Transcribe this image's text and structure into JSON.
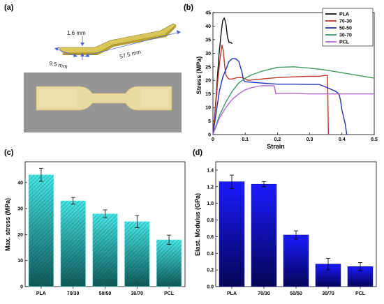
{
  "panels": {
    "a": "(a)",
    "b": "(b)",
    "c": "(c)",
    "d": "(d)"
  },
  "panel_a": {
    "dims": {
      "thickness": "1.6 mm",
      "width": "9.5 mm",
      "length": "57.5 mm"
    },
    "colors": {
      "specimen_model": "#d9c650",
      "photo_bg": "#8f8f8f",
      "photo_specimen": "#e8dba2",
      "arrow": "#4a63d6"
    }
  },
  "chart_data": [
    {
      "type": "line",
      "xlabel": "Strain",
      "ylabel": "Stress (MPa)",
      "xlim": [
        0,
        0.5
      ],
      "ylim": [
        0,
        45
      ],
      "xticks": [
        "0",
        "0.1",
        "0.2",
        "0.3",
        "0.4",
        "0.5"
      ],
      "yticks": [
        "0",
        "5",
        "10",
        "15",
        "20",
        "25",
        "30",
        "35",
        "40",
        "45"
      ],
      "legend_position": "top-right",
      "series": [
        {
          "name": "PLA",
          "color": "#111111",
          "points": [
            [
              0,
              0
            ],
            [
              0.005,
              6
            ],
            [
              0.01,
              14
            ],
            [
              0.015,
              23
            ],
            [
              0.02,
              31
            ],
            [
              0.025,
              37
            ],
            [
              0.03,
              42
            ],
            [
              0.035,
              43
            ],
            [
              0.04,
              41
            ],
            [
              0.045,
              36
            ],
            [
              0.05,
              34
            ],
            [
              0.055,
              34
            ],
            [
              0.06,
              33.5
            ]
          ]
        },
        {
          "name": "70-30",
          "color": "#c0392b",
          "points": [
            [
              0,
              0
            ],
            [
              0.008,
              10
            ],
            [
              0.015,
              20
            ],
            [
              0.022,
              28
            ],
            [
              0.028,
              33
            ],
            [
              0.032,
              31
            ],
            [
              0.036,
              26
            ],
            [
              0.04,
              22
            ],
            [
              0.045,
              21
            ],
            [
              0.05,
              20.5
            ],
            [
              0.06,
              20.5
            ],
            [
              0.075,
              21
            ],
            [
              0.09,
              21
            ],
            [
              0.11,
              20
            ],
            [
              0.15,
              20.5
            ],
            [
              0.2,
              21
            ],
            [
              0.25,
              21.3
            ],
            [
              0.3,
              21.5
            ],
            [
              0.33,
              21.5
            ],
            [
              0.345,
              21.8
            ],
            [
              0.355,
              21.8
            ],
            [
              0.356,
              15
            ],
            [
              0.357,
              8
            ],
            [
              0.358,
              0
            ]
          ]
        },
        {
          "name": "50-50",
          "color": "#2233bb",
          "points": [
            [
              0,
              0
            ],
            [
              0.01,
              8
            ],
            [
              0.02,
              16
            ],
            [
              0.03,
              21
            ],
            [
              0.04,
              24
            ],
            [
              0.05,
              27
            ],
            [
              0.06,
              28
            ],
            [
              0.07,
              28
            ],
            [
              0.08,
              27
            ],
            [
              0.09,
              23
            ],
            [
              0.095,
              20
            ],
            [
              0.1,
              19.5
            ],
            [
              0.15,
              19
            ],
            [
              0.2,
              18.6
            ],
            [
              0.25,
              18.6
            ],
            [
              0.3,
              18.5
            ],
            [
              0.33,
              18.5
            ],
            [
              0.35,
              17.5
            ],
            [
              0.36,
              17
            ],
            [
              0.38,
              16
            ],
            [
              0.39,
              15
            ],
            [
              0.395,
              13
            ],
            [
              0.4,
              9
            ],
            [
              0.41,
              4
            ],
            [
              0.415,
              0
            ]
          ]
        },
        {
          "name": "30-70",
          "color": "#3c9a5f",
          "points": [
            [
              0,
              0
            ],
            [
              0.02,
              7
            ],
            [
              0.04,
              12
            ],
            [
              0.06,
              16
            ],
            [
              0.08,
              19
            ],
            [
              0.1,
              20.8
            ],
            [
              0.12,
              22
            ],
            [
              0.15,
              23.3
            ],
            [
              0.18,
              24.2
            ],
            [
              0.2,
              24.8
            ],
            [
              0.25,
              25
            ],
            [
              0.3,
              24.5
            ],
            [
              0.35,
              23.8
            ],
            [
              0.4,
              22.8
            ],
            [
              0.45,
              21.8
            ],
            [
              0.5,
              20.8
            ]
          ]
        },
        {
          "name": "PCL",
          "color": "#b469d0",
          "points": [
            [
              0,
              0
            ],
            [
              0.02,
              6
            ],
            [
              0.04,
              10
            ],
            [
              0.06,
              13
            ],
            [
              0.08,
              15
            ],
            [
              0.1,
              16.5
            ],
            [
              0.12,
              17.3
            ],
            [
              0.15,
              18
            ],
            [
              0.18,
              18
            ],
            [
              0.19,
              18
            ],
            [
              0.195,
              15
            ],
            [
              0.2,
              15.2
            ],
            [
              0.25,
              15.2
            ],
            [
              0.3,
              15
            ],
            [
              0.35,
              15
            ],
            [
              0.4,
              15
            ],
            [
              0.45,
              15
            ],
            [
              0.5,
              15
            ]
          ]
        }
      ]
    },
    {
      "type": "bar",
      "categories": [
        "PLA",
        "70/30",
        "50/50",
        "30/70",
        "PCL"
      ],
      "values": [
        43,
        33,
        28,
        25,
        18
      ],
      "errors": [
        2.5,
        1.3,
        1.5,
        2.3,
        1.8
      ],
      "ylabel": "Max. stress (MPa)",
      "xlabel": "",
      "ylim": [
        0,
        48
      ],
      "yticks": [
        "0",
        "10",
        "20",
        "30",
        "40"
      ],
      "colors": {
        "top": "#46e6e6",
        "bottom": "#0f5858",
        "hatch": "#0c3d3d"
      }
    },
    {
      "type": "bar",
      "categories": [
        "PLA",
        "70/30",
        "50/50",
        "30/70",
        "PCL"
      ],
      "values": [
        1.26,
        1.23,
        0.62,
        0.27,
        0.24
      ],
      "errors": [
        0.08,
        0.03,
        0.05,
        0.07,
        0.05
      ],
      "ylabel": "Elast. Modulus (GPa)",
      "xlabel": "",
      "ylim": [
        0,
        1.5
      ],
      "yticks": [
        "0.0",
        "0.2",
        "0.4",
        "0.6",
        "0.8",
        "1.0",
        "1.2",
        "1.4"
      ],
      "colors": {
        "top": "#1a1aff",
        "bottom": "#050555"
      }
    }
  ]
}
